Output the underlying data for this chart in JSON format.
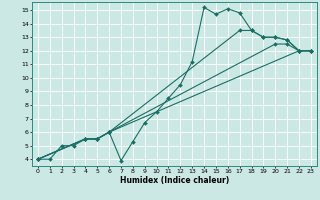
{
  "xlabel": "Humidex (Indice chaleur)",
  "bg_color": "#cce8e4",
  "grid_color": "#b0d8d2",
  "line_color": "#1a6e65",
  "xlim": [
    -0.5,
    23.5
  ],
  "ylim": [
    3.5,
    15.6
  ],
  "xticks": [
    0,
    1,
    2,
    3,
    4,
    5,
    6,
    7,
    8,
    9,
    10,
    11,
    12,
    13,
    14,
    15,
    16,
    17,
    18,
    19,
    20,
    21,
    22,
    23
  ],
  "yticks": [
    4,
    5,
    6,
    7,
    8,
    9,
    10,
    11,
    12,
    13,
    14,
    15
  ],
  "lines": [
    {
      "x": [
        0,
        1,
        2,
        3,
        4,
        5,
        6,
        7,
        8,
        9,
        10,
        11,
        12,
        13,
        14,
        15,
        16,
        17,
        18,
        19,
        20,
        21,
        22,
        23
      ],
      "y": [
        4.0,
        4.0,
        5.0,
        5.0,
        5.5,
        5.5,
        6.0,
        3.9,
        5.3,
        6.7,
        7.5,
        8.5,
        9.5,
        11.2,
        15.2,
        14.7,
        15.1,
        14.8,
        13.5,
        13.0,
        13.0,
        12.8,
        12.0,
        12.0
      ]
    },
    {
      "x": [
        0,
        4,
        5,
        6,
        22,
        23
      ],
      "y": [
        4.0,
        5.5,
        5.5,
        6.0,
        12.0,
        12.0
      ]
    },
    {
      "x": [
        0,
        4,
        5,
        6,
        20,
        21,
        22,
        23
      ],
      "y": [
        4.0,
        5.5,
        5.5,
        6.0,
        12.5,
        12.5,
        12.0,
        12.0
      ]
    },
    {
      "x": [
        0,
        4,
        5,
        6,
        17,
        18,
        19,
        20,
        21,
        22,
        23
      ],
      "y": [
        4.0,
        5.5,
        5.5,
        6.0,
        13.5,
        13.5,
        13.0,
        13.0,
        12.8,
        12.0,
        12.0
      ]
    }
  ]
}
